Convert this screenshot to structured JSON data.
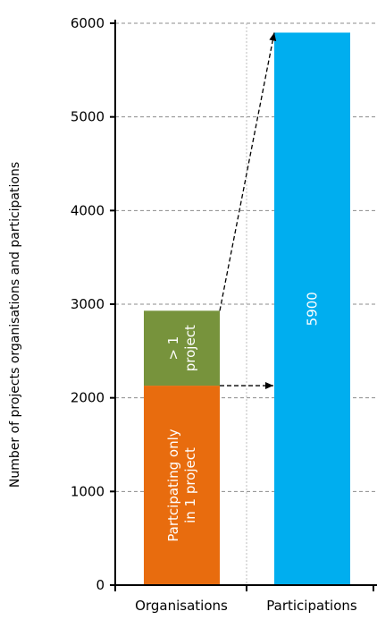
{
  "chart_data": {
    "type": "bar",
    "stacked": true,
    "ylabel": "Number of projects organisations and participations",
    "xlabel": "",
    "ylim": [
      0,
      6000
    ],
    "yticks": [
      0,
      1000,
      2000,
      3000,
      4000,
      5000,
      6000
    ],
    "categories": [
      "Organisations",
      "Participations"
    ],
    "grid": true,
    "segments": [
      {
        "category": "Organisations",
        "label": "Partcipating only in 1 project",
        "label_lines": [
          "Partcipating only",
          "in 1 project"
        ],
        "start": 0,
        "value": 2130,
        "color": "#E86C0E"
      },
      {
        "category": "Organisations",
        "label": "> 1 project",
        "label_lines": [
          "> 1",
          "project"
        ],
        "start": 2130,
        "value": 800,
        "color": "#77933C"
      },
      {
        "category": "Participations",
        "label": "5900",
        "label_lines": [
          "5900"
        ],
        "start": 0,
        "value": 5900,
        "color": "#00AEEF"
      }
    ],
    "arrows": [
      {
        "from_category": "Organisations",
        "from_value": 2930,
        "to_category": "Participations",
        "to_value": 5900
      },
      {
        "from_category": "Organisations",
        "from_value": 2130,
        "to_category": "Participations",
        "to_value": 2130
      }
    ]
  }
}
